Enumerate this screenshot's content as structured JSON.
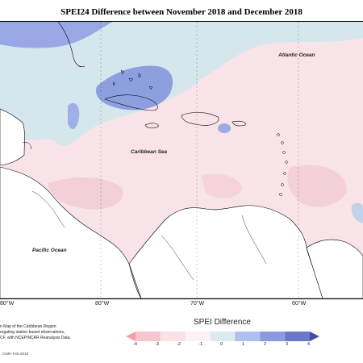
{
  "title": "SPEI24 Difference between November 2018 and December 2018",
  "labels": {
    "atlantic": "Atlantic Ocean",
    "caribbean": "Caribbean Sea",
    "pacific": "Pacific Ocean"
  },
  "longitudes": [
    "80°W",
    "80°W",
    "70°W",
    "60°W"
  ],
  "footer": {
    "line1": "n Map of the Caribbean Region",
    "line2": "regating station based observations,",
    "line3": "CF, with NCEP/NCAR Reanalysis Data.",
    "credit": "CIMH Feb-2019"
  },
  "legend": {
    "title": "SPEI Difference",
    "ticks": [
      "-4",
      "-3",
      "-2",
      "-1",
      "0",
      "1",
      "2",
      "3",
      "4"
    ],
    "colors": [
      "#f4a0ab",
      "#f5c6cf",
      "#f9e1e6",
      "#fef1f3",
      "#dce9ee",
      "#aebff0",
      "#8c98e0",
      "#6a78c8",
      "#4a4e9e"
    ]
  }
}
